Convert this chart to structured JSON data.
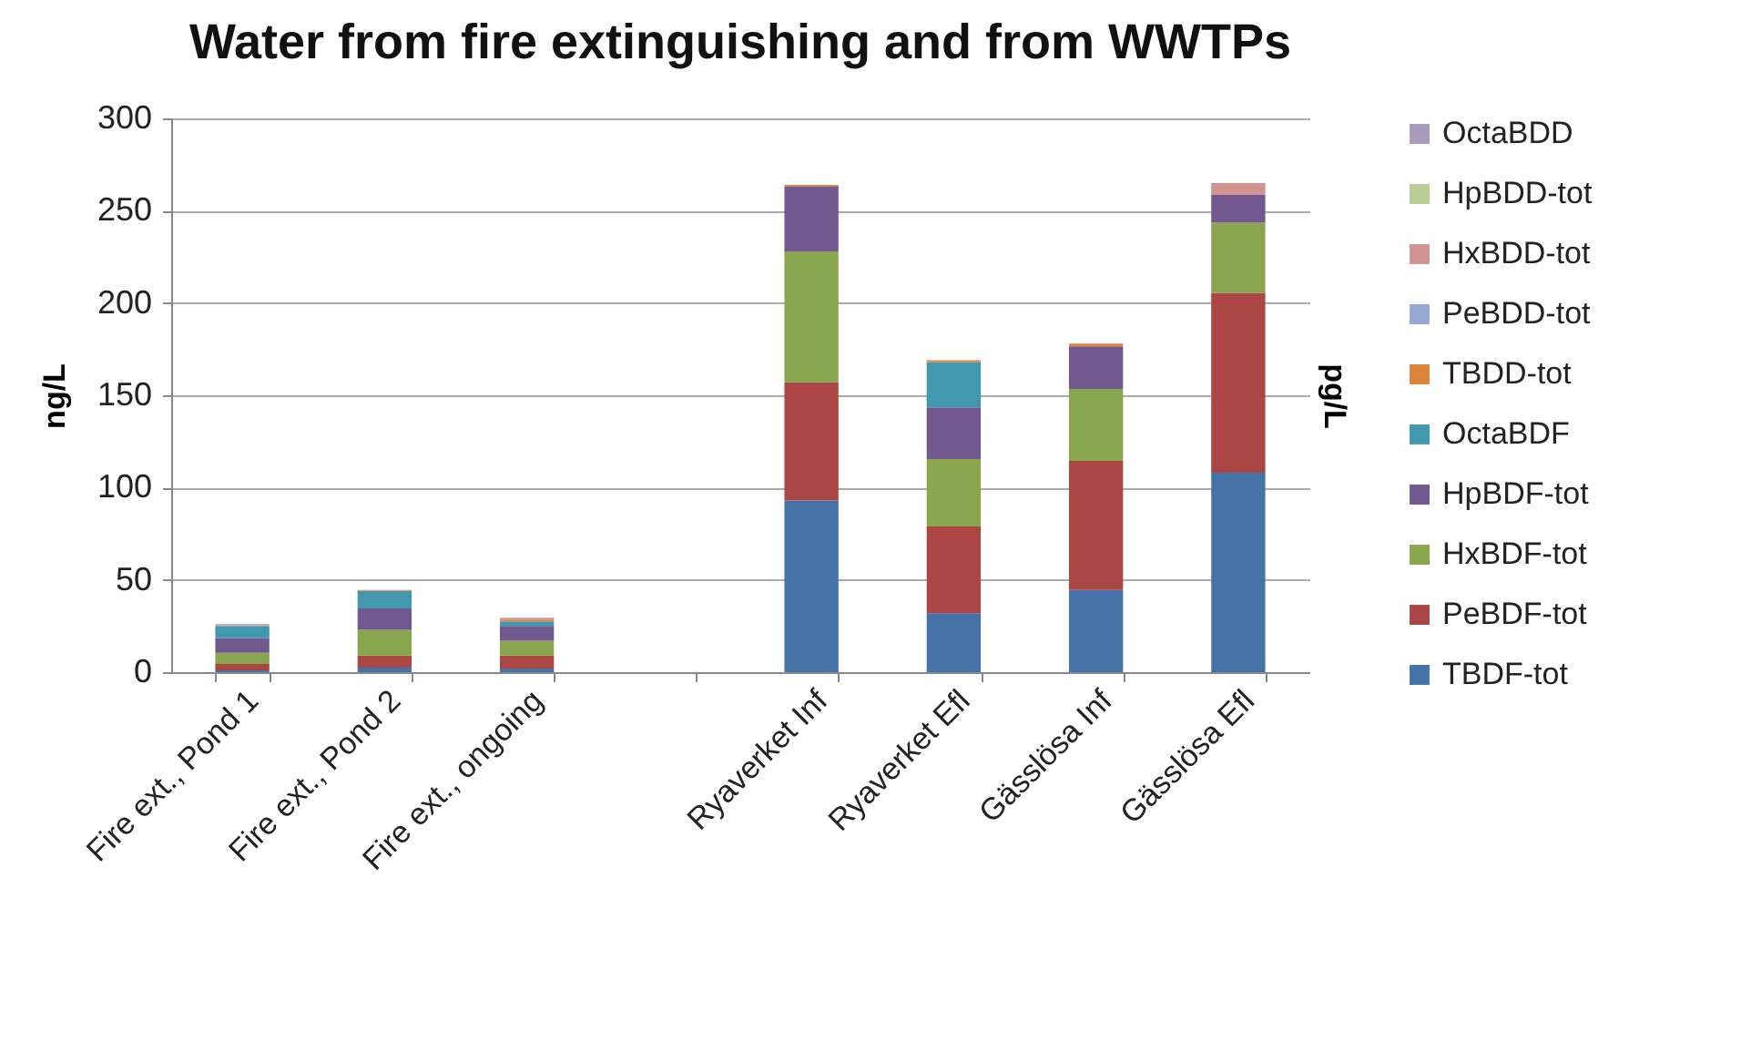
{
  "chart_data": {
    "type": "bar",
    "title": "Water from fire extinguishing and from WWTPs",
    "ylabel": "ng/L",
    "y2label": "pg/L",
    "categories": [
      "Fire ext., Pond 1",
      "Fire ext., Pond 2",
      "Fire ext., ongoing",
      null,
      "Ryaverket Inf",
      "Ryaverket Efl",
      "Gässlösa Inf",
      "Gässlösa Efl"
    ],
    "stacked": true,
    "ylim": [
      0,
      300
    ],
    "yticks": [
      0,
      50,
      100,
      150,
      200,
      250,
      300
    ],
    "grid": "y",
    "legend": "right",
    "series": [
      {
        "name": "TBDF-tot",
        "color": "#4572a7",
        "values": [
          1,
          2.5,
          2,
          null,
          93,
          32,
          44.5,
          108
        ]
      },
      {
        "name": "PeBDF-tot",
        "color": "#aa4643",
        "values": [
          3.5,
          6.5,
          7,
          null,
          64,
          47,
          70,
          97.5
        ]
      },
      {
        "name": "HxBDF-tot",
        "color": "#89a54e",
        "values": [
          6,
          14,
          8,
          null,
          71,
          36.5,
          39,
          38
        ]
      },
      {
        "name": "HpBDF-tot",
        "color": "#71588f",
        "values": [
          8,
          11.5,
          8,
          null,
          35,
          28,
          23,
          15
        ]
      },
      {
        "name": "OctaBDF",
        "color": "#4198af",
        "values": [
          6.5,
          9.5,
          2.5,
          null,
          0,
          24.5,
          0,
          0
        ]
      },
      {
        "name": "TBDD-tot",
        "color": "#db843d",
        "values": [
          0,
          0.5,
          1,
          null,
          1,
          1,
          1.5,
          0
        ]
      },
      {
        "name": "PeBDD-tot",
        "color": "#93a9cf",
        "values": [
          0,
          0,
          0,
          null,
          0,
          0,
          0,
          0
        ]
      },
      {
        "name": "HxBDD-tot",
        "color": "#d19392",
        "values": [
          0.5,
          0,
          1,
          null,
          0,
          0,
          0,
          6.5
        ]
      },
      {
        "name": "HpBDD-tot",
        "color": "#b9cd96",
        "values": [
          0,
          0,
          0,
          null,
          0,
          0,
          0,
          0
        ]
      },
      {
        "name": "OctaBDD",
        "color": "#a99bbd",
        "values": [
          0.5,
          0,
          0,
          null,
          0,
          0,
          0,
          0
        ]
      }
    ]
  }
}
